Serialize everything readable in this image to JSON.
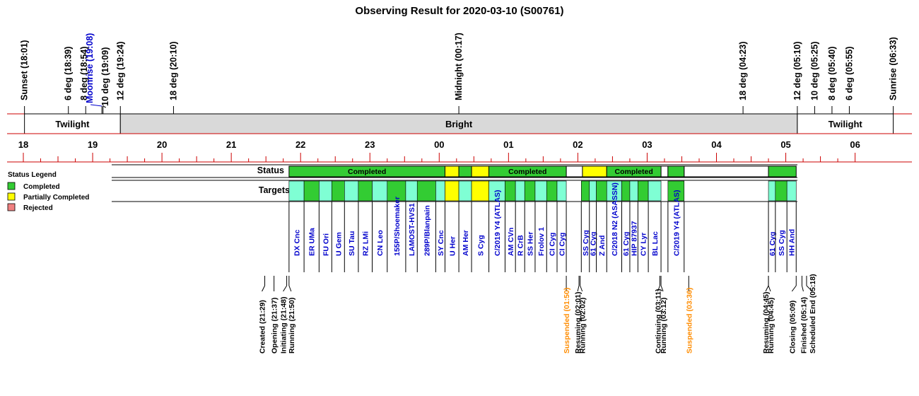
{
  "chart_data": {
    "type": "timeline",
    "title": "Observing Result for 2020-03-10 (S00761)",
    "x_range_hours": [
      18.0,
      30.65
    ],
    "hour_ticks": [
      "18",
      "19",
      "20",
      "21",
      "22",
      "23",
      "00",
      "01",
      "02",
      "03",
      "04",
      "05",
      "06"
    ],
    "sky_events": [
      {
        "label": "Sunset (18:01)",
        "t": "18:01",
        "kind": "sun"
      },
      {
        "label": "6 deg (18:39)",
        "t": "18:39",
        "kind": "twilight"
      },
      {
        "label": "8 deg (18:54)",
        "t": "18:54",
        "kind": "twilight"
      },
      {
        "label": "Moonrise (19:08)",
        "t": "19:08",
        "kind": "moon"
      },
      {
        "label": "10 deg (19:09)",
        "t": "19:09",
        "kind": "twilight"
      },
      {
        "label": "12 deg (19:24)",
        "t": "19:24",
        "kind": "twilight"
      },
      {
        "label": "18 deg (20:10)",
        "t": "20:10",
        "kind": "twilight"
      },
      {
        "label": "Midnight (00:17)",
        "t": "00:17",
        "kind": "midnight"
      },
      {
        "label": "18 deg (04:23)",
        "t": "04:23",
        "kind": "twilight"
      },
      {
        "label": "12 deg (05:10)",
        "t": "05:10",
        "kind": "twilight"
      },
      {
        "label": "10 deg (05:25)",
        "t": "05:25",
        "kind": "twilight"
      },
      {
        "label": "8 deg (05:40)",
        "t": "05:40",
        "kind": "twilight"
      },
      {
        "label": "6 deg (05:55)",
        "t": "05:55",
        "kind": "twilight"
      },
      {
        "label": "Sunrise (06:33)",
        "t": "06:33",
        "kind": "sun"
      }
    ],
    "sky_bands": [
      {
        "label": "Twilight",
        "start": "18:01",
        "end": "19:24",
        "fill": "#ffffff"
      },
      {
        "label": "Bright",
        "start": "19:24",
        "end": "05:10",
        "fill": "#d9d9d9"
      },
      {
        "label": "Twilight",
        "start": "05:10",
        "end": "06:33",
        "fill": "#ffffff"
      }
    ],
    "status_row_label": "Status",
    "status_segments": [
      {
        "start": "21:50",
        "end": "00:05",
        "status": "completed",
        "label": "Completed"
      },
      {
        "start": "00:05",
        "end": "00:17",
        "status": "partial",
        "label": ""
      },
      {
        "start": "00:17",
        "end": "00:28",
        "status": "completed",
        "label": ""
      },
      {
        "start": "00:28",
        "end": "00:43",
        "status": "partial",
        "label": ""
      },
      {
        "start": "00:43",
        "end": "01:50",
        "status": "completed",
        "label": "Completed"
      },
      {
        "start": "02:04",
        "end": "02:25",
        "status": "partial",
        "label": ""
      },
      {
        "start": "02:25",
        "end": "03:12",
        "status": "completed",
        "label": "Completed"
      },
      {
        "start": "03:18",
        "end": "03:32",
        "status": "completed",
        "label": ""
      },
      {
        "start": "04:45",
        "end": "05:09",
        "status": "completed",
        "label": ""
      }
    ],
    "status_empty_blocks": [
      {
        "start": "01:50",
        "end": "02:04"
      },
      {
        "start": "03:12",
        "end": "03:18"
      },
      {
        "start": "03:32",
        "end": "04:45"
      }
    ],
    "targets_row_label": "Targets",
    "targets": [
      {
        "name": "DX Cnc",
        "start": "21:50",
        "end": "22:03",
        "status": "completed"
      },
      {
        "name": "ER UMa",
        "start": "22:03",
        "end": "22:16",
        "status": "completed"
      },
      {
        "name": "FU Ori",
        "start": "22:16",
        "end": "22:27",
        "status": "completed"
      },
      {
        "name": "U Gem",
        "start": "22:27",
        "end": "22:38",
        "status": "completed"
      },
      {
        "name": "SU Tau",
        "start": "22:38",
        "end": "22:50",
        "status": "completed"
      },
      {
        "name": "RZ LMi",
        "start": "22:50",
        "end": "23:02",
        "status": "completed"
      },
      {
        "name": "CN Leo",
        "start": "23:02",
        "end": "23:15",
        "status": "completed"
      },
      {
        "name": "155P/Shoemaker",
        "start": "23:15",
        "end": "23:31",
        "status": "completed"
      },
      {
        "name": "LAMOST-HVS1",
        "start": "23:31",
        "end": "23:41",
        "status": "completed"
      },
      {
        "name": "289P/Blanpain",
        "start": "23:41",
        "end": "23:57",
        "status": "completed"
      },
      {
        "name": "SY Cnc",
        "start": "23:57",
        "end": "00:05",
        "status": "completed"
      },
      {
        "name": "U Her",
        "start": "00:05",
        "end": "00:17",
        "status": "partial"
      },
      {
        "name": "AM Her",
        "start": "00:17",
        "end": "00:28",
        "status": "completed"
      },
      {
        "name": "S Cyg",
        "start": "00:28",
        "end": "00:43",
        "status": "partial"
      },
      {
        "name": "C/2019 Y4 (ATLAS)",
        "start": "00:43",
        "end": "00:57",
        "status": "completed"
      },
      {
        "name": "AM CVn",
        "start": "00:57",
        "end": "01:06",
        "status": "completed"
      },
      {
        "name": "R CrB",
        "start": "01:06",
        "end": "01:14",
        "status": "completed"
      },
      {
        "name": "SS Her",
        "start": "01:14",
        "end": "01:23",
        "status": "completed"
      },
      {
        "name": "Frolov 1",
        "start": "01:23",
        "end": "01:33",
        "status": "completed"
      },
      {
        "name": "CI Cyg",
        "start": "01:33",
        "end": "01:42",
        "status": "completed"
      },
      {
        "name": "CI Cyg",
        "start": "01:42",
        "end": "01:50",
        "status": "completed"
      },
      {
        "name": "SS Cyg",
        "start": "02:03",
        "end": "02:10",
        "status": "completed"
      },
      {
        "name": "61 Cyg",
        "start": "02:10",
        "end": "02:16",
        "status": "completed"
      },
      {
        "name": "Z And",
        "start": "02:16",
        "end": "02:25",
        "status": "completed"
      },
      {
        "name": "C/2018 N2 (ASASSN)",
        "start": "02:25",
        "end": "02:38",
        "status": "completed"
      },
      {
        "name": "61 Cyg",
        "start": "02:38",
        "end": "02:45",
        "status": "completed"
      },
      {
        "name": "HIP 87937",
        "start": "02:45",
        "end": "02:52",
        "status": "completed"
      },
      {
        "name": "CY Lyr",
        "start": "02:52",
        "end": "03:01",
        "status": "completed"
      },
      {
        "name": "BL Lac",
        "start": "03:01",
        "end": "03:12",
        "status": "completed"
      },
      {
        "name": "C/2019 Y4 (ATLAS)",
        "start": "03:18",
        "end": "03:32",
        "status": "completed"
      },
      {
        "name": "61 Cyg",
        "start": "04:45",
        "end": "04:51",
        "status": "completed"
      },
      {
        "name": "SS Cyg",
        "start": "04:51",
        "end": "05:01",
        "status": "completed"
      },
      {
        "name": "HH And",
        "start": "05:01",
        "end": "05:09",
        "status": "completed"
      }
    ],
    "log_events": [
      {
        "label": "Created (21:29)",
        "t": "21:29",
        "kind": "normal"
      },
      {
        "label": "Opening (21:37)",
        "t": "21:37",
        "kind": "normal"
      },
      {
        "label": "Initiating (21:48)",
        "t": "21:48",
        "kind": "normal"
      },
      {
        "label": "Running (21:50)",
        "t": "21:50",
        "kind": "normal"
      },
      {
        "label": "Suspended (01:50)",
        "t": "01:50",
        "kind": "suspended"
      },
      {
        "label": "Resuming (02:01)",
        "t": "02:01",
        "kind": "normal"
      },
      {
        "label": "Running (02:02)",
        "t": "02:02",
        "kind": "normal"
      },
      {
        "label": "Continuing (03:11)",
        "t": "03:11",
        "kind": "normal"
      },
      {
        "label": "Running (03:12)",
        "t": "03:12",
        "kind": "normal"
      },
      {
        "label": "Suspended (03:36)",
        "t": "03:36",
        "kind": "suspended"
      },
      {
        "label": "Resuming (04:45)",
        "t": "04:45",
        "kind": "normal"
      },
      {
        "label": "Running (04:45)",
        "t": "04:45",
        "kind": "normal"
      },
      {
        "label": "Closing (05:09)",
        "t": "05:09",
        "kind": "normal"
      },
      {
        "label": "Finished (05:14)",
        "t": "05:14",
        "kind": "normal"
      },
      {
        "label": "Scheduled End (05:18)",
        "t": "05:18",
        "kind": "normal"
      }
    ],
    "legend": {
      "title": "Status Legend",
      "items": [
        {
          "label": "Completed",
          "color": "#33cc33"
        },
        {
          "label": "Partially Completed",
          "color": "#ffff00"
        },
        {
          "label": "Rejected",
          "color": "#f08080"
        }
      ]
    },
    "colors": {
      "completed": "#33cc33",
      "partial": "#ffff00",
      "rejected": "#f08080",
      "target_alt": "#7fffd4",
      "target_name": "#0000cc",
      "moon": "#0000cc",
      "suspended": "#ff8c00",
      "axis_line": "#cc0000",
      "bright": "#d9d9d9"
    }
  }
}
